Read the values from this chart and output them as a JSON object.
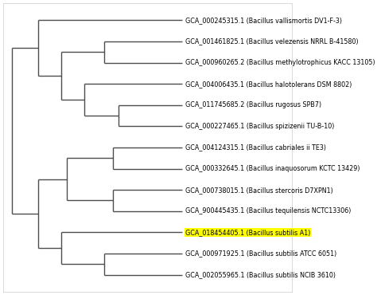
{
  "taxa": [
    "GCA_000245315.1 (Bacillus vallismortis DV1-F-3)",
    "GCA_001461825.1 (Bacillus velezensis NRRL B-41580)",
    "GCA_000960265.2 (Bacillus methylotrophicus KACC 13105)",
    "GCA_004006435.1 (Bacillus halotolerans DSM 8802)",
    "GCA_011745685.2 (Bacillus rugosus SPB7)",
    "GCA_000227465.1 (Bacillus spizizenii TU-B-10)",
    "GCA_004124315.1 (Bacillus cabriales ii TE3)",
    "GCA_000332645.1 (Bacillus inaquosorum KCTC 13429)",
    "GCA_000738015.1 (Bacillus stercoris D7XPN1)",
    "GCA_900445435.1 (Bacillus tequilensis NCTC13306)",
    "GCA_018454405.1 (Bacillus subtilis A1)",
    "GCA_000971925.1 (Bacillus subtilis ATCC 6051)",
    "GCA_002055965.1 (Bacillus subtilis NCIB 3610)"
  ],
  "highlight_index": 10,
  "highlight_color": "#FFFF00",
  "line_color": "#4d4d4d",
  "text_color": "#000000",
  "font_size": 5.8,
  "background_color": "#ffffff",
  "border_color": "#cccccc"
}
